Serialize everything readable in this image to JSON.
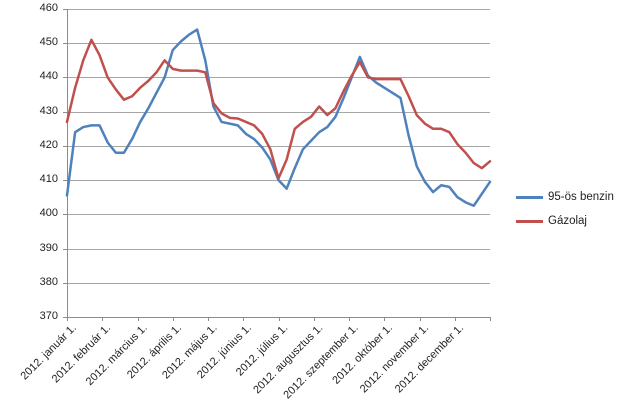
{
  "chart_data": {
    "type": "line",
    "title": "",
    "x_labels": [
      "2012. január 1.",
      "2012. február 1.",
      "2012. március 1.",
      "2012. április 1.",
      "2012. május 1.",
      "2012. június 1.",
      "2012. július 1.",
      "2012. augusztus 1.",
      "2012. szeptember 1.",
      "2012. október 1.",
      "2012. november 1.",
      "2012. december 1."
    ],
    "y_ticks": [
      370,
      380,
      390,
      400,
      410,
      420,
      430,
      440,
      450,
      460
    ],
    "y_axis": {
      "min": 370,
      "max": 460,
      "step": 10
    },
    "grid": true,
    "legend_position": "right",
    "series": [
      {
        "name": "95-ös benzin",
        "color": "#4F81BD",
        "values": [
          405.5,
          424,
          425.5,
          426,
          426,
          421,
          418,
          418,
          422,
          427,
          431,
          435.5,
          440,
          448,
          450.5,
          452.5,
          454,
          445,
          431.5,
          427,
          426.5,
          426,
          423.5,
          422,
          419.5,
          416,
          410,
          407.5,
          413.5,
          419,
          421.5,
          424,
          425.5,
          428.5,
          434,
          440,
          446,
          440.5,
          438.5,
          437,
          435.5,
          434,
          423,
          414,
          409.5,
          406.5,
          408.5,
          408,
          405,
          403.5,
          402.5,
          406,
          409.5
        ]
      },
      {
        "name": "Gázolaj",
        "color": "#C0504D",
        "values": [
          427,
          437,
          445,
          451,
          446.5,
          440,
          436.5,
          433.5,
          434.5,
          437,
          439,
          441.5,
          445,
          442.5,
          442,
          442,
          442,
          441.5,
          432.5,
          429.5,
          428.2,
          428,
          427,
          426,
          423.5,
          419,
          410.5,
          416,
          425,
          427,
          428.5,
          431.5,
          429,
          431,
          436,
          440.5,
          444.5,
          440,
          439.5,
          439.5,
          439.5,
          439.5,
          434.5,
          429,
          426.5,
          425,
          425,
          424,
          420.5,
          418,
          415,
          413.5,
          415.5
        ]
      }
    ]
  },
  "colors": {
    "gridline": "#A6A6A6",
    "axis": "#8C8C8C",
    "tick_text": "#1f1f1f",
    "background": "#FFFFFF"
  }
}
